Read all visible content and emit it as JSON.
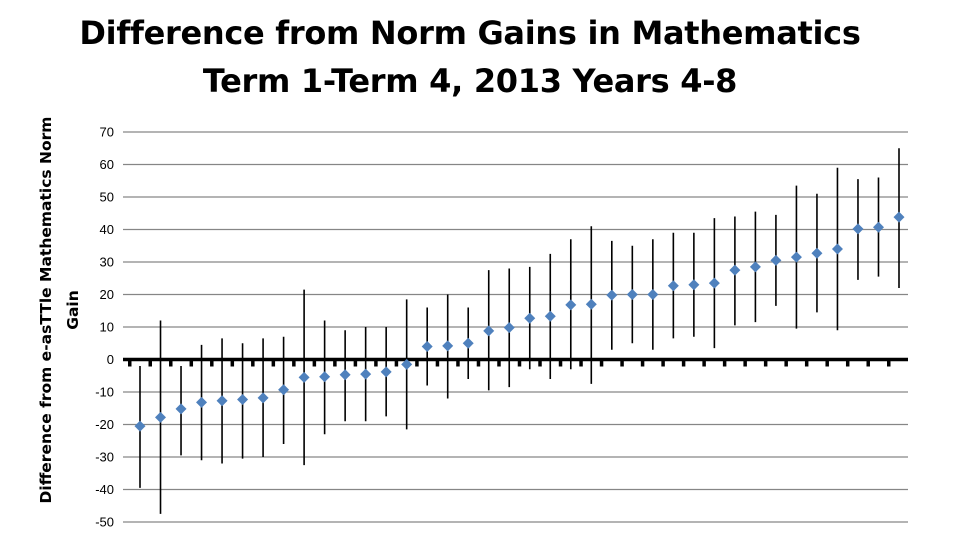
{
  "chart_data": {
    "type": "scatter",
    "title": "Difference from Norm Gains in Mathematics",
    "subtitle": "Term 1-Term 4, 2013 Years 4-8",
    "ylabel": "Difference from e-asTTle Mathematics Norm Gain",
    "xlabel": "",
    "ylim": [
      -50,
      70
    ],
    "yticks": [
      70,
      60,
      50,
      40,
      30,
      20,
      10,
      0,
      -10,
      -20,
      -30,
      -40,
      -50
    ],
    "grid": true,
    "legend": "none",
    "marker": "diamond",
    "colors": {
      "marker": "#4f81bd",
      "grid": "#868686",
      "errorbar": "#000000",
      "zero_axis": "#000000"
    },
    "points": [
      {
        "y": -20.5,
        "low": -39.5,
        "high": -2
      },
      {
        "y": -17.8,
        "low": -47.5,
        "high": 12
      },
      {
        "y": -15.2,
        "low": -29.5,
        "high": -2
      },
      {
        "y": -13.2,
        "low": -31,
        "high": 4.5
      },
      {
        "y": -12.7,
        "low": -32,
        "high": 6.5
      },
      {
        "y": -12.3,
        "low": -30.5,
        "high": 5
      },
      {
        "y": -11.8,
        "low": -30,
        "high": 6.5
      },
      {
        "y": -9.3,
        "low": -26,
        "high": 7
      },
      {
        "y": -5.5,
        "low": -32.5,
        "high": 21.5
      },
      {
        "y": -5.3,
        "low": -23,
        "high": 12
      },
      {
        "y": -4.7,
        "low": -19,
        "high": 9
      },
      {
        "y": -4.5,
        "low": -19,
        "high": 10
      },
      {
        "y": -3.8,
        "low": -17.5,
        "high": 10
      },
      {
        "y": -1.5,
        "low": -21.5,
        "high": 18.5
      },
      {
        "y": 4,
        "low": -8,
        "high": 16
      },
      {
        "y": 4.2,
        "low": -12,
        "high": 20
      },
      {
        "y": 5,
        "low": -6,
        "high": 16
      },
      {
        "y": 8.8,
        "low": -9.5,
        "high": 27.5
      },
      {
        "y": 9.8,
        "low": -8.5,
        "high": 28
      },
      {
        "y": 12.7,
        "low": -3,
        "high": 28.5
      },
      {
        "y": 13.3,
        "low": -6,
        "high": 32.5
      },
      {
        "y": 16.8,
        "low": -3,
        "high": 37
      },
      {
        "y": 17,
        "low": -7.5,
        "high": 41
      },
      {
        "y": 19.8,
        "low": 3,
        "high": 36.5
      },
      {
        "y": 20,
        "low": 5,
        "high": 35
      },
      {
        "y": 20,
        "low": 3,
        "high": 37
      },
      {
        "y": 22.7,
        "low": 6.5,
        "high": 39
      },
      {
        "y": 23,
        "low": 7,
        "high": 39
      },
      {
        "y": 23.5,
        "low": 3.5,
        "high": 43.5
      },
      {
        "y": 27.5,
        "low": 10.5,
        "high": 44
      },
      {
        "y": 28.5,
        "low": 11.5,
        "high": 45.5
      },
      {
        "y": 30.5,
        "low": 16.5,
        "high": 44.5
      },
      {
        "y": 31.5,
        "low": 9.5,
        "high": 53.5
      },
      {
        "y": 32.7,
        "low": 14.5,
        "high": 51
      },
      {
        "y": 34,
        "low": 9,
        "high": 59
      },
      {
        "y": 40.2,
        "low": 24.5,
        "high": 55.5
      },
      {
        "y": 40.7,
        "low": 25.5,
        "high": 56
      },
      {
        "y": 43.8,
        "low": 22,
        "high": 65
      }
    ]
  }
}
